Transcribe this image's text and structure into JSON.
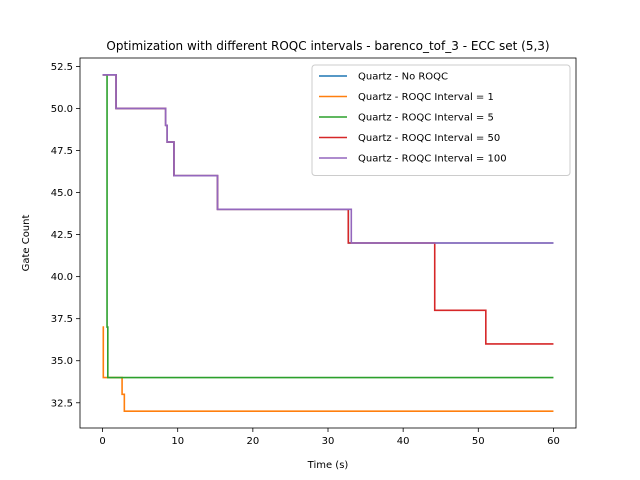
{
  "chart_data": {
    "type": "line",
    "title": "Optimization with different ROQC intervals - barenco_tof_3 - ECC set (5,3)",
    "xlabel": "Time (s)",
    "ylabel": "Gate Count",
    "xlim": [
      -3,
      63
    ],
    "ylim": [
      31.0,
      53.0
    ],
    "xticks": [
      0,
      10,
      20,
      30,
      40,
      50,
      60
    ],
    "xtick_labels": [
      "0",
      "10",
      "20",
      "30",
      "40",
      "50",
      "60"
    ],
    "yticks": [
      32.5,
      35.0,
      37.5,
      40.0,
      42.5,
      45.0,
      47.5,
      50.0,
      52.5
    ],
    "ytick_labels": [
      "32.5",
      "35.0",
      "37.5",
      "40.0",
      "42.5",
      "45.0",
      "47.5",
      "50.0",
      "52.5"
    ],
    "grid": false,
    "legend_position": "top-right",
    "series": [
      {
        "name": "Quartz - No ROQC",
        "color": "#1f77b4",
        "x": [
          0,
          1.8,
          1.8,
          8.4,
          8.4,
          8.6,
          8.6,
          9.5,
          9.5,
          15.3,
          15.3,
          32.7,
          32.7,
          60
        ],
        "y": [
          52,
          52,
          50,
          50,
          49,
          49,
          48,
          48,
          46,
          46,
          44,
          44,
          42,
          42
        ]
      },
      {
        "name": "Quartz - ROQC Interval = 1",
        "color": "#ff7f0e",
        "x": [
          0,
          0.1,
          0.1,
          2.6,
          2.6,
          2.9,
          2.9,
          60
        ],
        "y": [
          37,
          37,
          34,
          34,
          33,
          33,
          32,
          32
        ]
      },
      {
        "name": "Quartz - ROQC Interval = 5",
        "color": "#2ca02c",
        "x": [
          0,
          0.4,
          0.4,
          0.6,
          0.6,
          0.7,
          0.7,
          60
        ],
        "y": [
          52,
          52,
          52,
          52,
          37,
          37,
          34,
          34
        ]
      },
      {
        "name": "Quartz - ROQC Interval = 50",
        "color": "#d62728",
        "x": [
          0,
          1.8,
          1.8,
          8.4,
          8.4,
          8.6,
          8.6,
          9.5,
          9.5,
          15.3,
          15.3,
          32.7,
          32.7,
          44.2,
          44.2,
          51.0,
          51.0,
          60
        ],
        "y": [
          52,
          52,
          50,
          50,
          49,
          49,
          48,
          48,
          46,
          46,
          44,
          44,
          42,
          42,
          38,
          38,
          36,
          36
        ]
      },
      {
        "name": "Quartz - ROQC Interval = 100",
        "color": "#9467bd",
        "x": [
          0,
          1.8,
          1.8,
          8.4,
          8.4,
          8.6,
          8.6,
          9.5,
          9.5,
          15.3,
          15.3,
          33.1,
          33.1,
          60
        ],
        "y": [
          52,
          52,
          50,
          50,
          49,
          49,
          48,
          48,
          46,
          46,
          44,
          44,
          42,
          42
        ]
      }
    ]
  }
}
